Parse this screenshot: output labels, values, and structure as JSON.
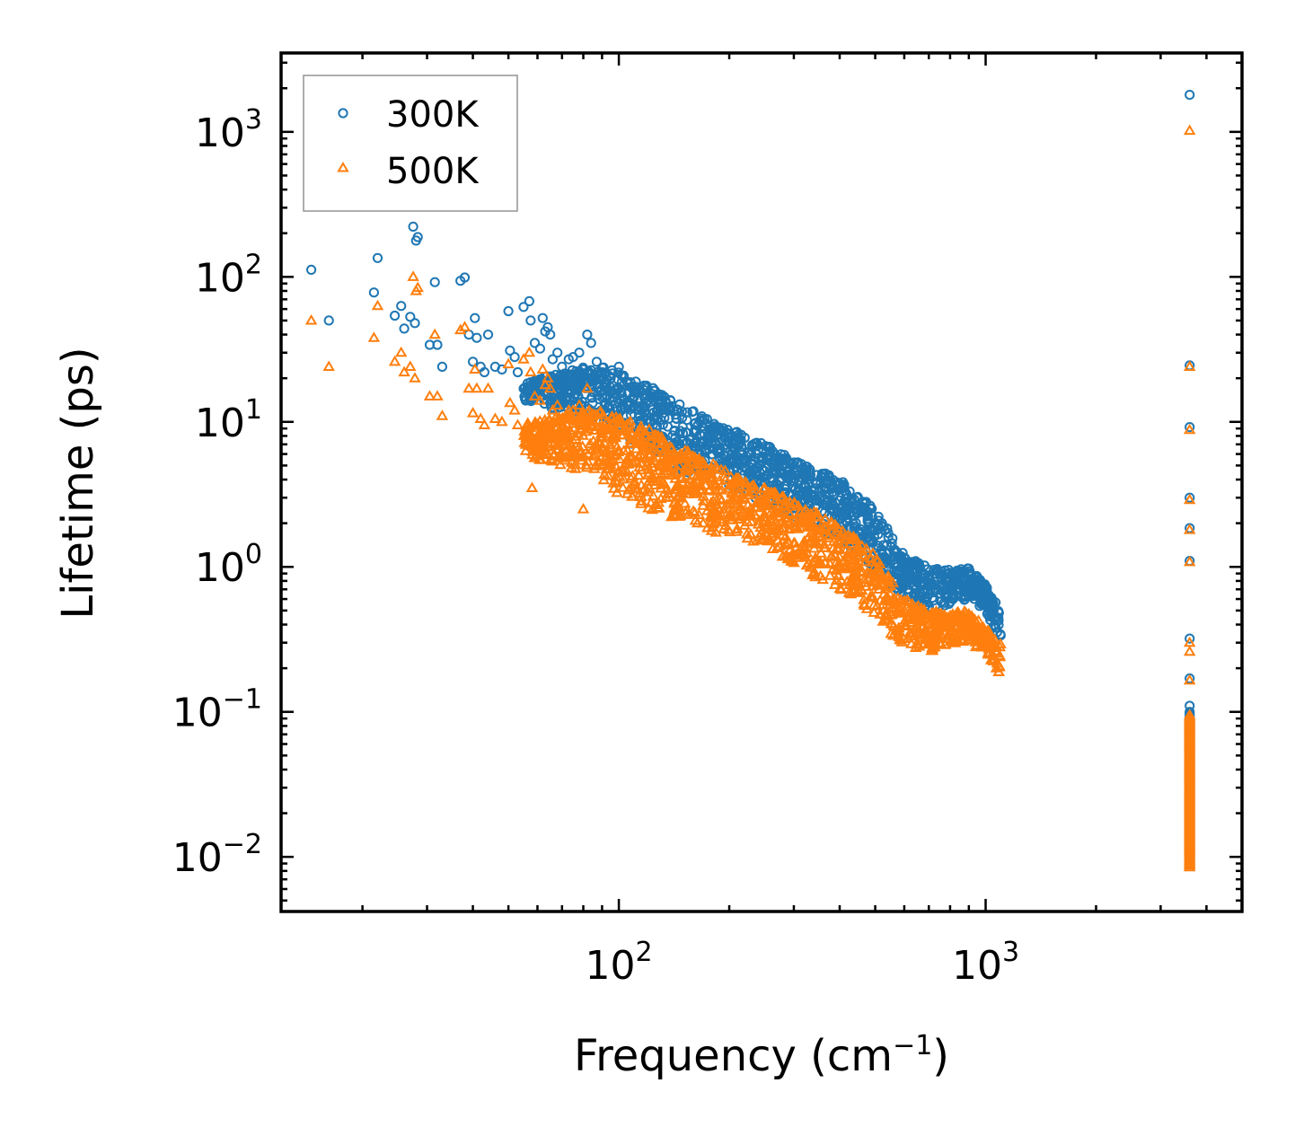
{
  "chart_data": {
    "type": "scatter",
    "xscale": "log",
    "yscale": "log",
    "xlabel": {
      "main": "Frequency (cm",
      "sup": "−1",
      "close": ")"
    },
    "ylabel": "Lifetime (ps)",
    "xlim": [
      12,
      5000
    ],
    "ylim": [
      0.0042,
      3500
    ],
    "x_ticks": [
      {
        "value": 100,
        "base": "10",
        "exp": "2"
      },
      {
        "value": 1000,
        "base": "10",
        "exp": "3"
      }
    ],
    "y_ticks": [
      {
        "value": 0.01,
        "base": "10",
        "exp": "−2"
      },
      {
        "value": 0.1,
        "base": "10",
        "exp": "−1"
      },
      {
        "value": 1,
        "base": "10",
        "exp": "0"
      },
      {
        "value": 10,
        "base": "10",
        "exp": "1"
      },
      {
        "value": 100,
        "base": "10",
        "exp": "2"
      },
      {
        "value": 1000,
        "base": "10",
        "exp": "3"
      }
    ],
    "legend_position": "top-left",
    "grid": false,
    "series": [
      {
        "name": "300K",
        "marker": "circle",
        "color": "#1f77b4",
        "points": [
          [
            14.5,
            112
          ],
          [
            16.2,
            50
          ],
          [
            21.5,
            78
          ],
          [
            22,
            135
          ],
          [
            24.5,
            54
          ],
          [
            25.5,
            63
          ],
          [
            26,
            44
          ],
          [
            27,
            53
          ],
          [
            27.5,
            222
          ],
          [
            28,
            178
          ],
          [
            28.3,
            188
          ],
          [
            27.8,
            48
          ],
          [
            30.5,
            34
          ],
          [
            31.5,
            92
          ],
          [
            32,
            34
          ],
          [
            33,
            24
          ],
          [
            37,
            94
          ],
          [
            38,
            99
          ],
          [
            39,
            40
          ],
          [
            40,
            26
          ],
          [
            40.5,
            52
          ],
          [
            41,
            38
          ],
          [
            42,
            24
          ],
          [
            43,
            22
          ],
          [
            44,
            40
          ],
          [
            46,
            24
          ],
          [
            48,
            23
          ],
          [
            50,
            58
          ],
          [
            50.5,
            31
          ],
          [
            52,
            28
          ],
          [
            53,
            22
          ],
          [
            55,
            62
          ],
          [
            57,
            68
          ],
          [
            57.5,
            50
          ],
          [
            59,
            35
          ],
          [
            61,
            32
          ],
          [
            62,
            52
          ],
          [
            63,
            42
          ],
          [
            64,
            45
          ],
          [
            65,
            40
          ],
          [
            66,
            27
          ],
          [
            68,
            30
          ],
          [
            70,
            24
          ],
          [
            73,
            27
          ],
          [
            75,
            28
          ],
          [
            78,
            30
          ],
          [
            80,
            23
          ],
          [
            82,
            40
          ],
          [
            84,
            35
          ],
          [
            87,
            26
          ],
          [
            90,
            22
          ],
          [
            95,
            20
          ],
          [
            100,
            24
          ],
          [
            3600,
            1800
          ],
          [
            3600,
            24.5
          ],
          [
            3600,
            9.2
          ],
          [
            3600,
            3.0
          ],
          [
            3600,
            1.85
          ],
          [
            3600,
            1.1
          ],
          [
            3600,
            0.32
          ],
          [
            3600,
            0.17
          ],
          [
            3600,
            0.11
          ]
        ],
        "band": {
          "x": [
            55,
            60,
            70,
            80,
            90,
            100,
            120,
            150,
            200,
            250,
            300,
            400,
            500,
            600,
            700,
            800,
            900,
            1000,
            1100
          ],
          "upper": [
            20,
            20,
            22,
            24,
            24,
            22,
            18,
            13,
            9,
            7,
            5.5,
            4,
            2.5,
            1.2,
            1.0,
            0.95,
            1.0,
            0.75,
            0.5
          ],
          "lower": [
            14,
            13,
            12,
            11,
            10,
            8,
            6,
            4.5,
            3.5,
            2.8,
            2.2,
            1.5,
            0.9,
            0.6,
            0.5,
            0.55,
            0.6,
            0.5,
            0.3
          ]
        },
        "column": {
          "x": 3600,
          "min": 0.009,
          "max": 0.1
        }
      },
      {
        "name": "500K",
        "marker": "triangle",
        "color": "#ff7f0e",
        "points": [
          [
            14.5,
            50
          ],
          [
            16.2,
            24
          ],
          [
            21.5,
            38
          ],
          [
            22,
            63
          ],
          [
            24.5,
            26
          ],
          [
            25.5,
            30
          ],
          [
            26,
            22
          ],
          [
            27,
            24
          ],
          [
            27.5,
            100
          ],
          [
            28,
            80
          ],
          [
            28.3,
            84
          ],
          [
            27.8,
            20
          ],
          [
            30.5,
            15
          ],
          [
            31.5,
            40
          ],
          [
            32,
            15
          ],
          [
            33,
            11
          ],
          [
            37,
            43
          ],
          [
            38,
            45
          ],
          [
            39,
            17
          ],
          [
            40,
            11.5
          ],
          [
            40.5,
            23
          ],
          [
            41,
            17
          ],
          [
            42,
            10.5
          ],
          [
            43,
            9.5
          ],
          [
            44,
            17
          ],
          [
            46,
            10.5
          ],
          [
            48,
            10
          ],
          [
            50,
            25
          ],
          [
            50.5,
            13.5
          ],
          [
            52,
            12
          ],
          [
            53,
            9.5
          ],
          [
            55,
            27
          ],
          [
            57,
            30
          ],
          [
            57.5,
            22
          ],
          [
            59,
            15
          ],
          [
            61,
            14
          ],
          [
            62,
            23
          ],
          [
            63,
            18
          ],
          [
            64,
            20
          ],
          [
            65,
            17
          ],
          [
            66,
            12
          ],
          [
            68,
            13
          ],
          [
            70,
            10.5
          ],
          [
            73,
            12
          ],
          [
            75,
            12
          ],
          [
            78,
            13
          ],
          [
            80,
            10
          ],
          [
            58,
            3.5
          ],
          [
            80,
            2.5
          ],
          [
            82,
            17
          ],
          [
            3600,
            1020
          ],
          [
            3600,
            24
          ],
          [
            3600,
            8.8
          ],
          [
            3600,
            2.9
          ],
          [
            3600,
            1.8
          ],
          [
            3600,
            1.08
          ],
          [
            3600,
            0.3
          ],
          [
            3600,
            0.26
          ],
          [
            3600,
            0.165
          ]
        ],
        "band": {
          "x": [
            55,
            60,
            70,
            80,
            90,
            100,
            120,
            150,
            200,
            250,
            300,
            400,
            500,
            600,
            700,
            800,
            900,
            1000,
            1100
          ],
          "upper": [
            10,
            10,
            11,
            12,
            12,
            11,
            9,
            6.5,
            4.5,
            3.5,
            2.8,
            2.0,
            1.2,
            0.6,
            0.5,
            0.48,
            0.5,
            0.38,
            0.3
          ],
          "lower": [
            6,
            5.5,
            5,
            4.5,
            4,
            3,
            2.5,
            2.0,
            1.6,
            1.3,
            1.0,
            0.7,
            0.4,
            0.28,
            0.25,
            0.28,
            0.3,
            0.25,
            0.17
          ]
        },
        "column": {
          "x": 3600,
          "min": 0.0085,
          "max": 0.095
        }
      }
    ]
  }
}
